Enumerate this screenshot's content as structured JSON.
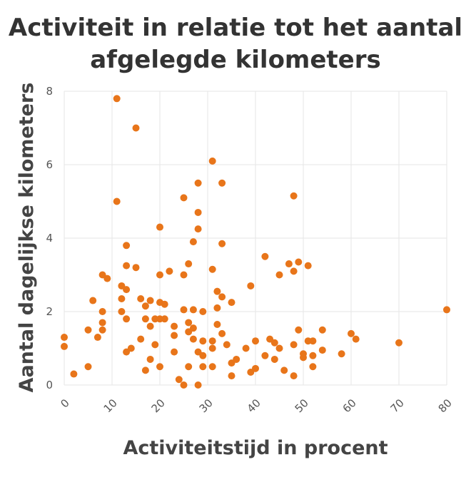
{
  "chart_data": {
    "type": "scatter",
    "title_lines": [
      "Activiteit in relatie tot het aantal",
      "afgelegde kilometers"
    ],
    "xlabel": "Activiteitstijd in procent",
    "ylabel": "Aantal dagelijkse kilometers",
    "xlim": [
      0,
      80
    ],
    "ylim": [
      0,
      8
    ],
    "x_ticks": [
      "0",
      "10",
      "20",
      "30",
      "40",
      "50",
      "60",
      "70",
      "80"
    ],
    "y_ticks": [
      "0",
      "2",
      "4",
      "6",
      "8"
    ],
    "grid": true,
    "color": "#E8751A",
    "points": [
      [
        0,
        1.3
      ],
      [
        0,
        1.05
      ],
      [
        2,
        0.3
      ],
      [
        5,
        1.5
      ],
      [
        5,
        0.5
      ],
      [
        6,
        2.3
      ],
      [
        7,
        1.3
      ],
      [
        8,
        3.0
      ],
      [
        8,
        2.0
      ],
      [
        8,
        1.7
      ],
      [
        8,
        1.5
      ],
      [
        9,
        2.9
      ],
      [
        11,
        7.8
      ],
      [
        11,
        5.0
      ],
      [
        12,
        2.7
      ],
      [
        12,
        2.35
      ],
      [
        12,
        2.0
      ],
      [
        13,
        3.8
      ],
      [
        13,
        3.25
      ],
      [
        13,
        2.6
      ],
      [
        13,
        1.8
      ],
      [
        13,
        0.9
      ],
      [
        14,
        1.0
      ],
      [
        15,
        7.0
      ],
      [
        15,
        3.2
      ],
      [
        16,
        2.35
      ],
      [
        16,
        1.25
      ],
      [
        17,
        2.15
      ],
      [
        17,
        1.8
      ],
      [
        17,
        0.4
      ],
      [
        18,
        2.3
      ],
      [
        18,
        1.6
      ],
      [
        18,
        0.7
      ],
      [
        19,
        1.8
      ],
      [
        19,
        1.1
      ],
      [
        20,
        4.3
      ],
      [
        20,
        3.0
      ],
      [
        20,
        2.25
      ],
      [
        20,
        1.8
      ],
      [
        20,
        0.5
      ],
      [
        21,
        2.2
      ],
      [
        21,
        1.8
      ],
      [
        22,
        3.1
      ],
      [
        23,
        1.6
      ],
      [
        23,
        1.35
      ],
      [
        23,
        0.9
      ],
      [
        24,
        0.15
      ],
      [
        25,
        5.1
      ],
      [
        25,
        3.0
      ],
      [
        25,
        2.05
      ],
      [
        25,
        0.0
      ],
      [
        26,
        3.3
      ],
      [
        26,
        1.7
      ],
      [
        26,
        1.45
      ],
      [
        26,
        0.5
      ],
      [
        27,
        3.9
      ],
      [
        27,
        2.05
      ],
      [
        27,
        1.55
      ],
      [
        27,
        1.25
      ],
      [
        28,
        5.5
      ],
      [
        28,
        4.7
      ],
      [
        28,
        4.25
      ],
      [
        28,
        0.9
      ],
      [
        28,
        0.0
      ],
      [
        29,
        2.0
      ],
      [
        29,
        1.2
      ],
      [
        29,
        0.8
      ],
      [
        29,
        0.5
      ],
      [
        31,
        6.1
      ],
      [
        31,
        3.15
      ],
      [
        31,
        1.2
      ],
      [
        31,
        1.0
      ],
      [
        31,
        0.5
      ],
      [
        32,
        2.55
      ],
      [
        32,
        2.1
      ],
      [
        32,
        1.65
      ],
      [
        33,
        5.5
      ],
      [
        33,
        3.85
      ],
      [
        33,
        2.4
      ],
      [
        33,
        1.4
      ],
      [
        34,
        1.1
      ],
      [
        35,
        2.25
      ],
      [
        35,
        0.6
      ],
      [
        35,
        0.25
      ],
      [
        36,
        0.7
      ],
      [
        38,
        1.0
      ],
      [
        39,
        2.7
      ],
      [
        39,
        0.35
      ],
      [
        40,
        1.2
      ],
      [
        40,
        0.45
      ],
      [
        42,
        3.5
      ],
      [
        42,
        0.8
      ],
      [
        43,
        1.25
      ],
      [
        44,
        1.15
      ],
      [
        44,
        0.7
      ],
      [
        45,
        3.0
      ],
      [
        45,
        1.0
      ],
      [
        46,
        0.4
      ],
      [
        47,
        3.3
      ],
      [
        48,
        5.15
      ],
      [
        48,
        3.1
      ],
      [
        48,
        1.1
      ],
      [
        48,
        0.25
      ],
      [
        49,
        3.35
      ],
      [
        49,
        1.5
      ],
      [
        50,
        0.85
      ],
      [
        50,
        0.75
      ],
      [
        51,
        3.25
      ],
      [
        51,
        1.2
      ],
      [
        52,
        1.2
      ],
      [
        52,
        0.8
      ],
      [
        52,
        0.5
      ],
      [
        54,
        1.5
      ],
      [
        54,
        0.95
      ],
      [
        58,
        0.85
      ],
      [
        60,
        1.4
      ],
      [
        61,
        1.25
      ],
      [
        70,
        1.15
      ],
      [
        80,
        2.05
      ]
    ]
  }
}
